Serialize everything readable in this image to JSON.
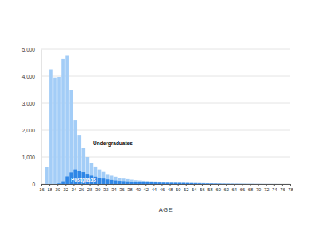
{
  "chart_data": {
    "type": "histogram",
    "x_label": "AGE",
    "bins": [
      16,
      17,
      18,
      19,
      20,
      21,
      22,
      23,
      24,
      25,
      26,
      27,
      28,
      29,
      30,
      31,
      32,
      33,
      34,
      35,
      36,
      37,
      38,
      39,
      40,
      41,
      42,
      43,
      44,
      45,
      46,
      47,
      48,
      49,
      50,
      51,
      52,
      53,
      54,
      55,
      56,
      57,
      58,
      59,
      60,
      61,
      62,
      63,
      64,
      65,
      66,
      67,
      68,
      69,
      70,
      71,
      72,
      73,
      74,
      75,
      76,
      77,
      78
    ],
    "series": [
      {
        "name": "Undergraduates",
        "color": "#a3cdf7",
        "values": [
          0,
          620,
          4250,
          3950,
          3970,
          4650,
          4780,
          3500,
          2380,
          1820,
          1350,
          1000,
          780,
          650,
          540,
          450,
          370,
          310,
          270,
          230,
          200,
          180,
          160,
          140,
          130,
          120,
          110,
          100,
          95,
          90,
          85,
          80,
          75,
          70,
          65,
          60,
          55,
          50,
          45,
          40,
          35,
          30,
          27,
          24,
          21,
          18,
          15,
          13,
          11,
          9,
          8,
          7,
          6,
          5,
          4,
          4,
          3,
          3,
          2,
          2,
          1,
          1
        ]
      },
      {
        "name": "Postgrads",
        "color": "#2f86e6",
        "values": [
          0,
          0,
          0,
          0,
          20,
          100,
          280,
          430,
          540,
          500,
          440,
          380,
          310,
          270,
          230,
          200,
          170,
          150,
          130,
          115,
          105,
          95,
          88,
          80,
          75,
          70,
          65,
          60,
          56,
          52,
          48,
          45,
          42,
          40,
          37,
          34,
          31,
          28,
          25,
          22,
          19,
          17,
          15,
          13,
          11,
          9,
          8,
          7,
          6,
          5,
          4,
          3,
          3,
          2,
          2,
          1,
          1,
          1,
          1,
          0,
          0,
          0
        ]
      }
    ],
    "xlim": [
      16,
      78
    ],
    "ylim": [
      0,
      5000
    ],
    "xticks": [
      16,
      18,
      20,
      22,
      24,
      26,
      28,
      30,
      32,
      34,
      36,
      38,
      40,
      42,
      44,
      46,
      48,
      50,
      52,
      54,
      56,
      58,
      60,
      62,
      64,
      66,
      68,
      70,
      72,
      74,
      76,
      78
    ],
    "yticks": [
      0,
      {
        "value": 1000,
        "label": "1,000"
      },
      {
        "value": 2000,
        "label": "2,000"
      },
      {
        "value": 3000,
        "label": "3,000"
      },
      {
        "value": 4000,
        "label": "4,000"
      },
      {
        "value": 5000,
        "label": "5,000"
      }
    ],
    "grid": true
  }
}
